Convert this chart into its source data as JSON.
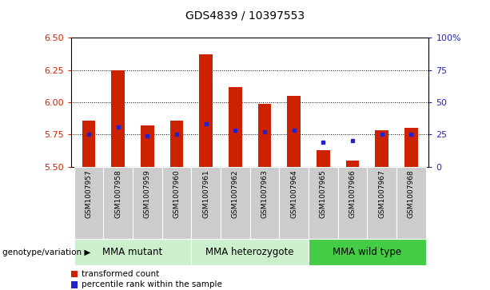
{
  "title": "GDS4839 / 10397553",
  "samples": [
    "GSM1007957",
    "GSM1007958",
    "GSM1007959",
    "GSM1007960",
    "GSM1007961",
    "GSM1007962",
    "GSM1007963",
    "GSM1007964",
    "GSM1007965",
    "GSM1007966",
    "GSM1007967",
    "GSM1007968"
  ],
  "transformed_count": [
    5.86,
    6.25,
    5.82,
    5.86,
    6.37,
    6.12,
    5.99,
    6.05,
    5.63,
    5.55,
    5.78,
    5.8
  ],
  "percentile_rank": [
    25,
    31,
    24,
    25,
    33,
    28,
    27,
    28,
    19,
    20,
    25,
    25
  ],
  "groups": [
    {
      "label": "MMA mutant",
      "start": 0,
      "end": 3,
      "color": "#ccf0cc"
    },
    {
      "label": "MMA heterozygote",
      "start": 4,
      "end": 7,
      "color": "#ccf0cc"
    },
    {
      "label": "MMA wild type",
      "start": 8,
      "end": 11,
      "color": "#44cc44"
    }
  ],
  "ymin": 5.5,
  "ymax": 6.5,
  "yticks_left": [
    5.5,
    5.75,
    6.0,
    6.25,
    6.5
  ],
  "yticks_right": [
    0,
    25,
    50,
    75,
    100
  ],
  "grid_lines": [
    5.75,
    6.0,
    6.25
  ],
  "bar_color": "#cc2200",
  "dot_color": "#2222cc",
  "bar_bottom": 5.5,
  "bar_width": 0.45,
  "col_bg_color": "#cccccc",
  "col_edge_color": "#ffffff",
  "legend_bar_label": "transformed count",
  "legend_dot_label": "percentile rank within the sample",
  "genotype_label": "genotype/variation",
  "title_fontsize": 10,
  "axis_tick_fontsize": 8,
  "sample_label_fontsize": 6.5,
  "group_label_fontsize": 8.5,
  "legend_fontsize": 7.5,
  "genotype_fontsize": 7.5
}
